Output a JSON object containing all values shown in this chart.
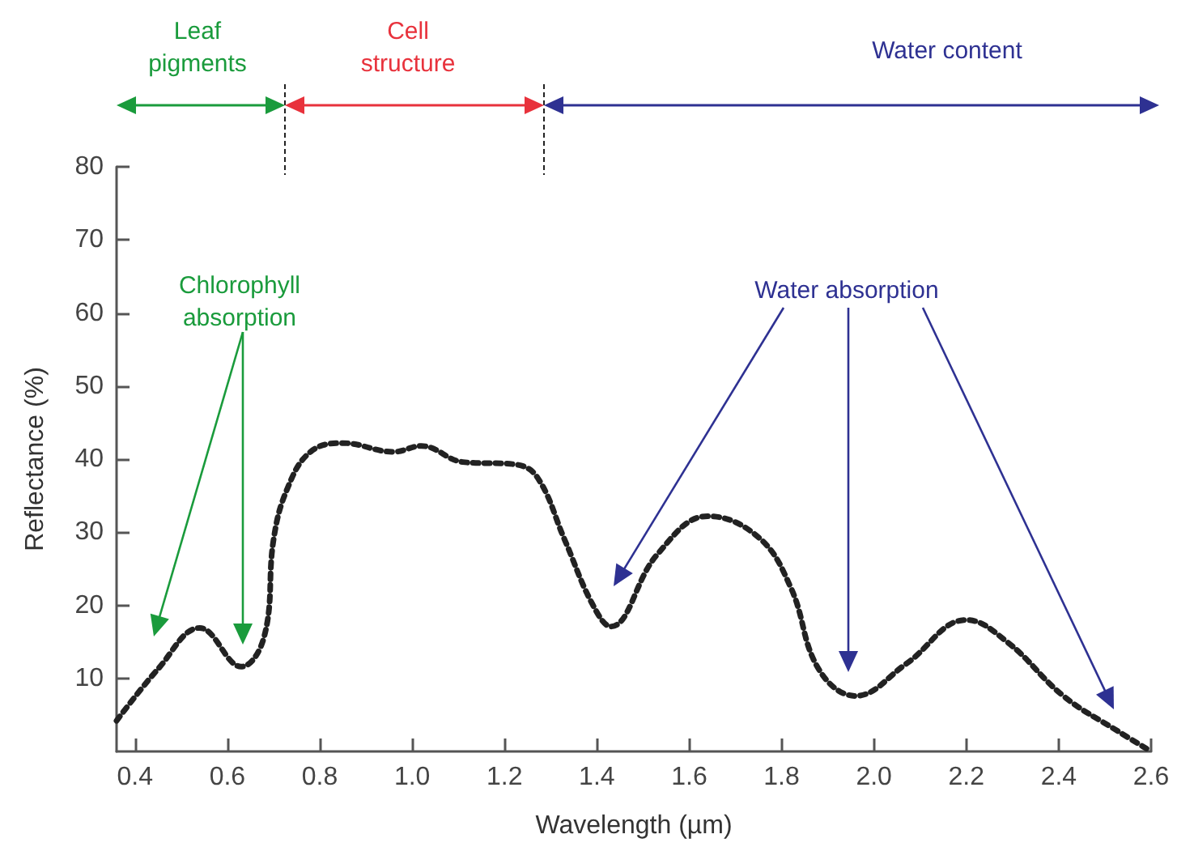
{
  "chart_data": {
    "type": "line",
    "xlabel": "Wavelength (µm)",
    "ylabel": "Reflectance (%)",
    "x": [
      0.36,
      0.45,
      0.54,
      0.63,
      0.68,
      0.7,
      0.73,
      0.78,
      0.85,
      0.96,
      1.02,
      1.11,
      1.22,
      1.27,
      1.33,
      1.39,
      1.43,
      1.53,
      1.64,
      1.75,
      1.82,
      1.88,
      1.96,
      2.07,
      2.2,
      2.29,
      2.41,
      2.53,
      2.59
    ],
    "series": [
      {
        "color": "#222222",
        "values": [
          4.2,
          11.3,
          16.9,
          11.6,
          15.8,
          29,
          36,
          41,
          42.2,
          41,
          41.8,
          39.6,
          39.3,
          37.6,
          29,
          20.2,
          17.1,
          26.9,
          32.2,
          29.3,
          22.4,
          11.3,
          7.6,
          12,
          18,
          14.9,
          7.6,
          2.7,
          0.4
        ]
      }
    ],
    "line_style": "dotted",
    "marker": "none",
    "grid": false,
    "xlim": [
      0.36,
      2.6
    ],
    "xticks": [
      0.4,
      0.6,
      0.8,
      {
        "value": 1,
        "label": "1.0"
      },
      1.2,
      1.4,
      1.6,
      1.8,
      {
        "value": 2,
        "label": "2.0"
      },
      2.2,
      2.4,
      2.6
    ],
    "ylim": [
      0,
      80
    ],
    "yticks": [
      10,
      20,
      30,
      40,
      50,
      60,
      70,
      80
    ],
    "annotations": [
      "Leaf\npigments",
      "Cell\nstructure",
      "Water content",
      "Chlorophyll\nabsorption",
      "Water absorption"
    ]
  }
}
